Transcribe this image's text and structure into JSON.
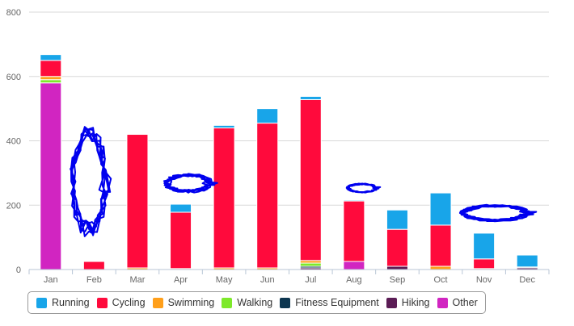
{
  "chart_data": {
    "type": "bar",
    "stacked": true,
    "categories": [
      "Jan",
      "Feb",
      "Mar",
      "Apr",
      "May",
      "Jun",
      "Jul",
      "Aug",
      "Sep",
      "Oct",
      "Nov",
      "Dec"
    ],
    "ylim": [
      0,
      800
    ],
    "yticks": [
      0,
      200,
      400,
      600,
      800
    ],
    "grid": true,
    "legend_position": "bottom-left",
    "series": [
      {
        "name": "Other",
        "color": "#d125c1",
        "values": [
          580,
          0,
          0,
          0,
          0,
          0,
          0,
          25,
          0,
          0,
          0,
          0
        ]
      },
      {
        "name": "Hiking",
        "color": "#5b1c55",
        "values": [
          0,
          0,
          0,
          0,
          0,
          0,
          5,
          0,
          10,
          0,
          0,
          5
        ]
      },
      {
        "name": "Fitness Equipment",
        "color": "#0d3650",
        "values": [
          0,
          0,
          0,
          0,
          0,
          0,
          5,
          0,
          0,
          0,
          0,
          3
        ]
      },
      {
        "name": "Walking",
        "color": "#7ee92b",
        "values": [
          10,
          0,
          0,
          0,
          0,
          0,
          10,
          0,
          0,
          0,
          0,
          0
        ]
      },
      {
        "name": "Swimming",
        "color": "#ff9f1a",
        "values": [
          10,
          0,
          5,
          3,
          5,
          5,
          8,
          0,
          0,
          10,
          3,
          0
        ]
      },
      {
        "name": "Cycling",
        "color": "#ff0a3c",
        "values": [
          50,
          25,
          415,
          175,
          435,
          450,
          500,
          188,
          115,
          128,
          30,
          0
        ]
      },
      {
        "name": "Running",
        "color": "#18a5e9",
        "values": [
          18,
          0,
          0,
          25,
          8,
          45,
          10,
          3,
          60,
          100,
          80,
          37
        ]
      }
    ]
  },
  "legend": {
    "items": [
      {
        "label": "Running",
        "color": "#18a5e9"
      },
      {
        "label": "Cycling",
        "color": "#ff0a3c"
      },
      {
        "label": "Swimming",
        "color": "#ff9f1a"
      },
      {
        "label": "Walking",
        "color": "#7ee92b"
      },
      {
        "label": "Fitness Equipment",
        "color": "#0d3650"
      },
      {
        "label": "Hiking",
        "color": "#5b1c55"
      },
      {
        "label": "Other",
        "color": "#d125c1"
      }
    ]
  },
  "scribbles": {
    "color": "#0000ee"
  }
}
